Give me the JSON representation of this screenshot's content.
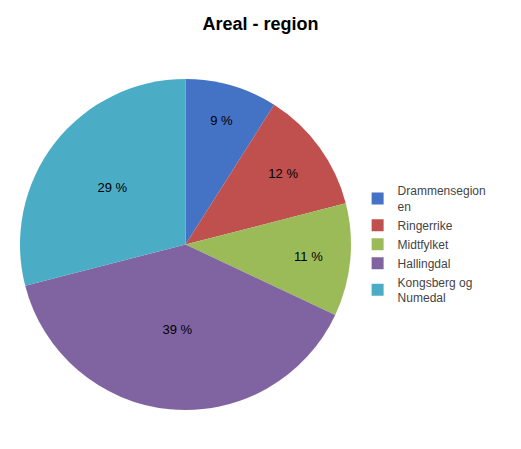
{
  "chart_data": {
    "type": "pie",
    "title": "Areal - region",
    "categories": [
      "Drammensegion\nen",
      "Ringerrike",
      "Midtfylket",
      "Hallingdal",
      "Kongsberg og\nNumedal"
    ],
    "values": [
      9,
      12,
      11,
      39,
      29
    ],
    "value_labels": [
      "9 %",
      "12 %",
      "11 %",
      "39 %",
      "29 %"
    ],
    "data_labels": true,
    "colors": [
      "#4472C4",
      "#C0504D",
      "#9BBB59",
      "#8064A2",
      "#4BACC6"
    ],
    "legend": "right"
  }
}
